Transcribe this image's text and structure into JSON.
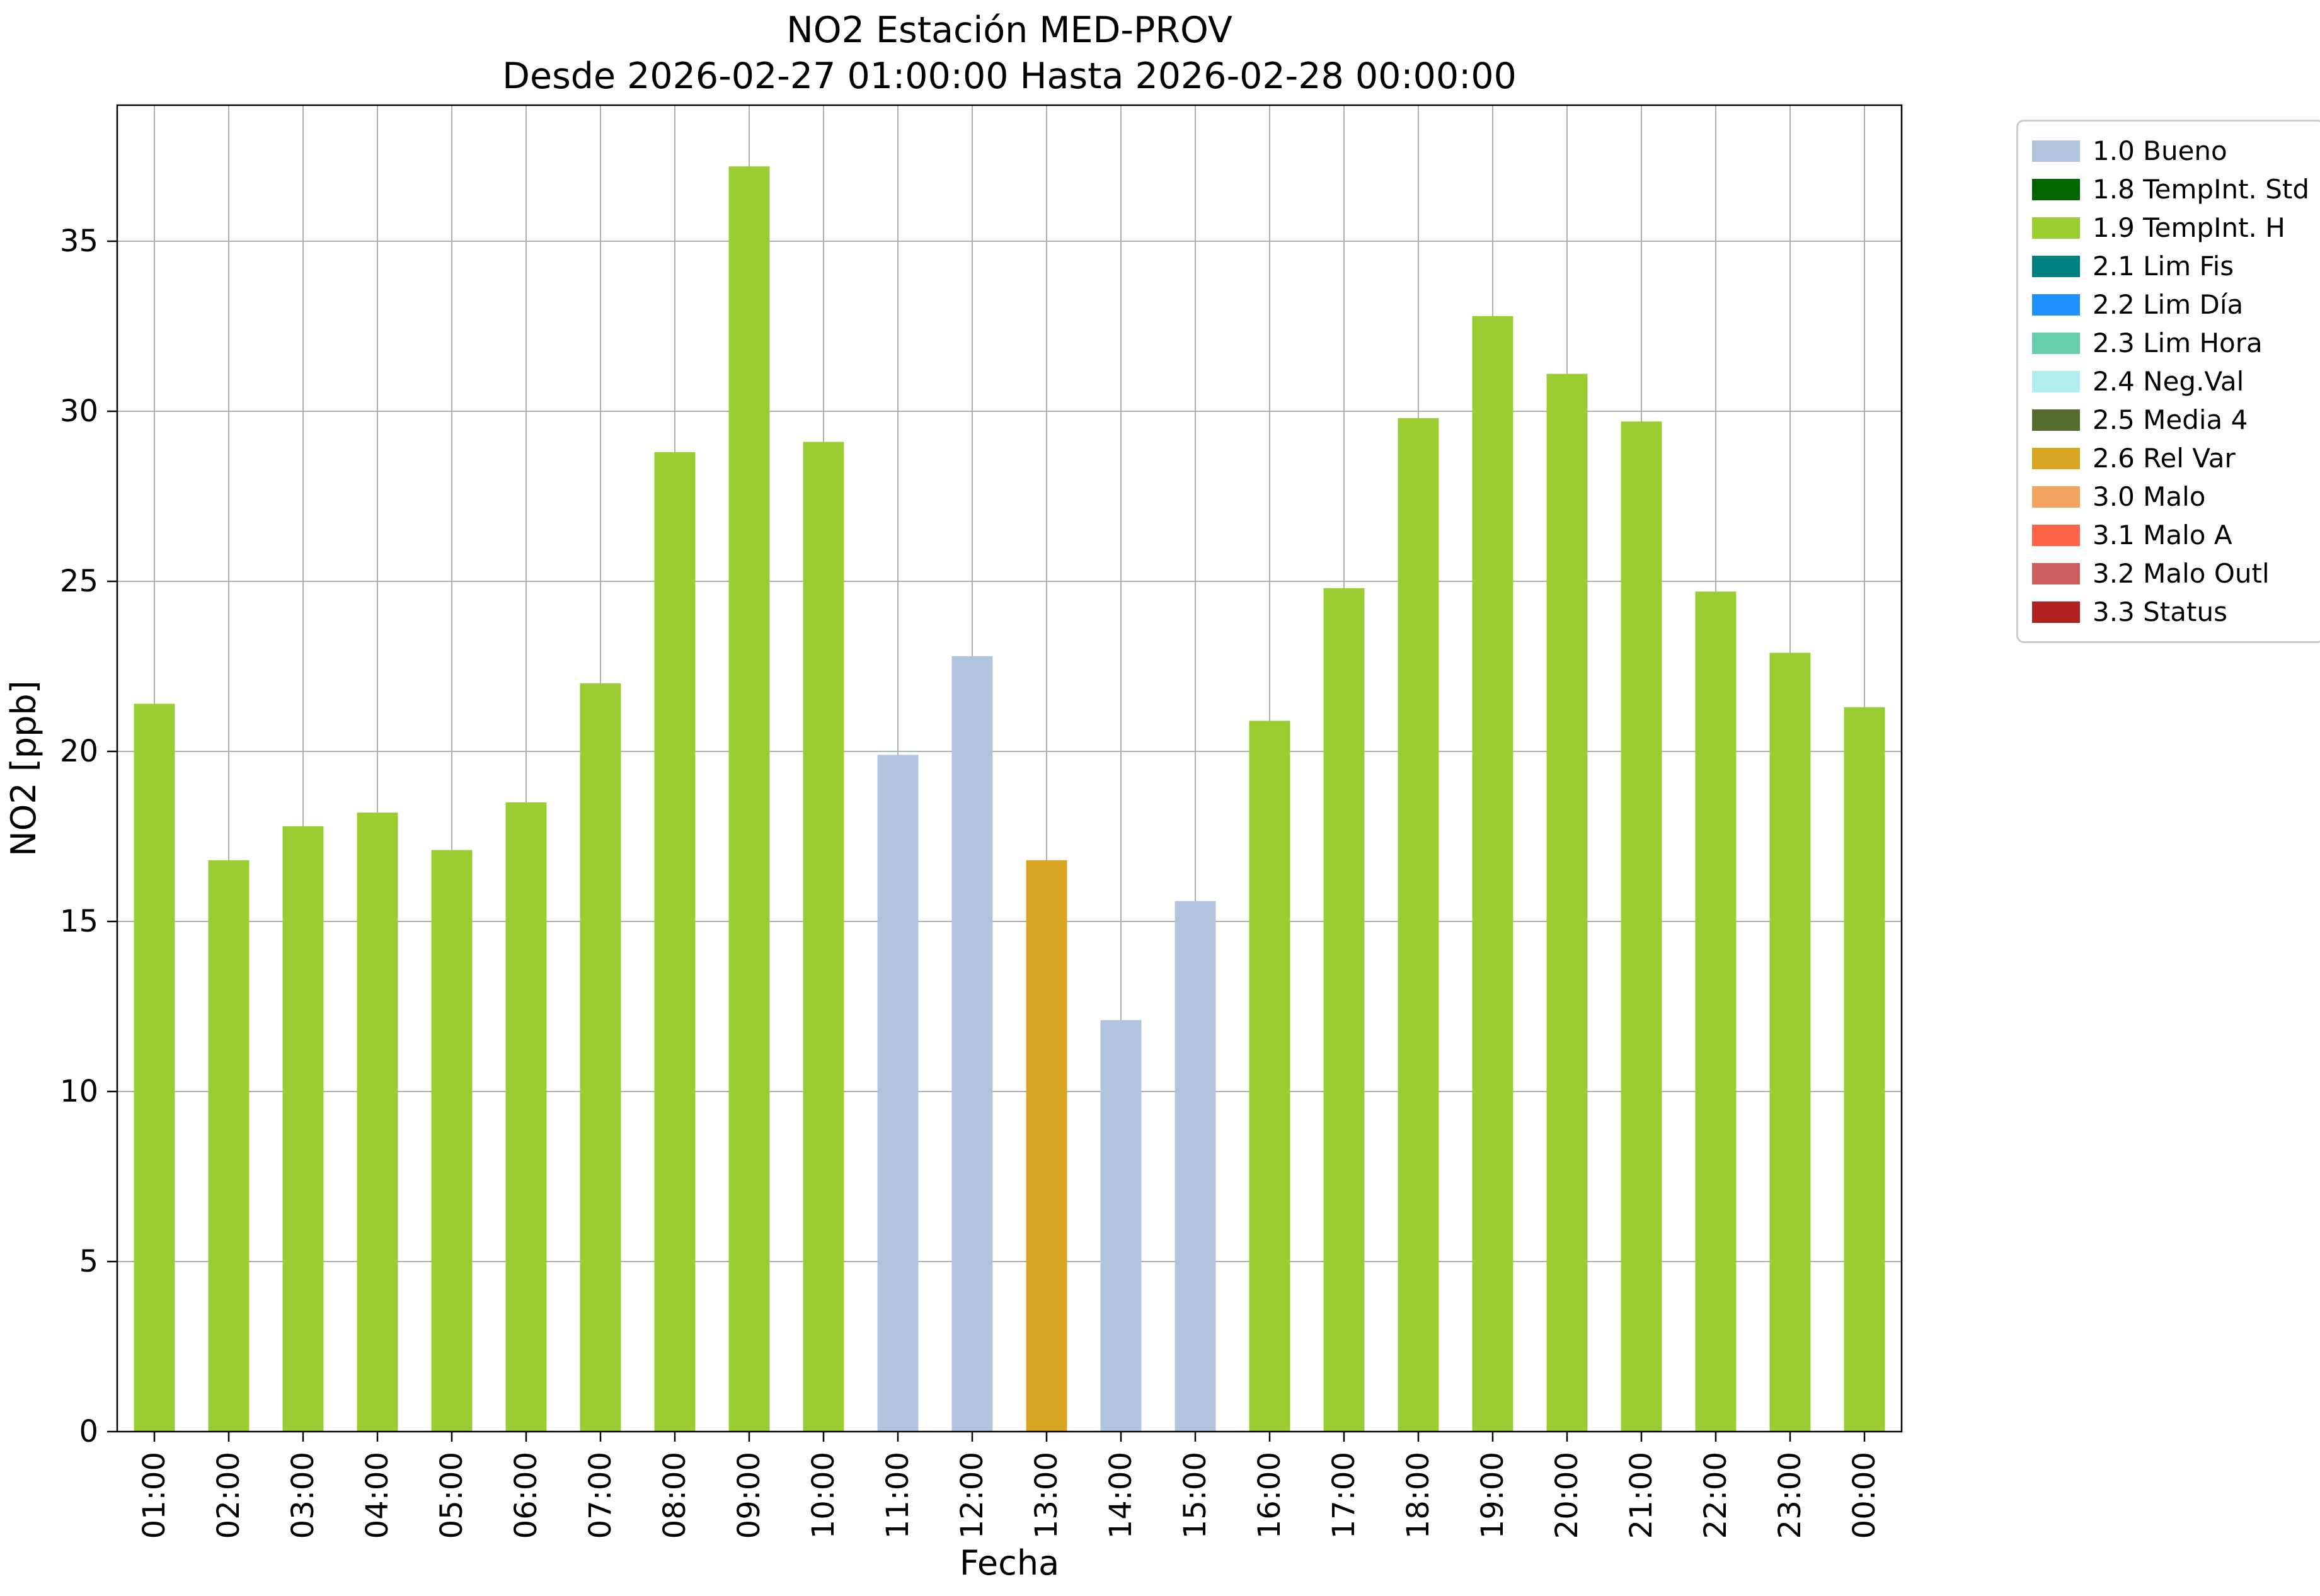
{
  "chart_data": {
    "type": "bar",
    "title": "NO2 Estación MED-PROV",
    "subtitle": "Desde 2026-02-27 01:00:00 Hasta 2026-02-28 00:00:00",
    "xlabel": "Fecha",
    "ylabel": "NO2 [ppb]",
    "ylim": [
      0,
      39.0
    ],
    "yticks": [
      0,
      5,
      10,
      15,
      20,
      25,
      30,
      35
    ],
    "grid": true,
    "legend_position": "outside-upper-right",
    "categories": [
      "01:00",
      "02:00",
      "03:00",
      "04:00",
      "05:00",
      "06:00",
      "07:00",
      "08:00",
      "09:00",
      "10:00",
      "11:00",
      "12:00",
      "13:00",
      "14:00",
      "15:00",
      "16:00",
      "17:00",
      "18:00",
      "19:00",
      "20:00",
      "21:00",
      "22:00",
      "23:00",
      "00:00"
    ],
    "values": [
      21.4,
      16.8,
      17.8,
      18.2,
      17.1,
      18.5,
      22.0,
      28.8,
      37.2,
      29.1,
      19.9,
      22.8,
      16.8,
      12.1,
      15.6,
      20.9,
      24.8,
      29.8,
      32.8,
      31.1,
      29.7,
      24.7,
      22.9,
      21.3
    ],
    "bar_flags": [
      "1.9",
      "1.9",
      "1.9",
      "1.9",
      "1.9",
      "1.9",
      "1.9",
      "1.9",
      "1.9",
      "1.9",
      "1.0",
      "1.0",
      "2.6",
      "1.0",
      "1.0",
      "1.9",
      "1.9",
      "1.9",
      "1.9",
      "1.9",
      "1.9",
      "1.9",
      "1.9",
      "1.9"
    ],
    "flag_colors": {
      "1.0": "#B0C4DE",
      "1.8": "#006400",
      "1.9": "#9ACD32",
      "2.1": "#008080",
      "2.2": "#1E90FF",
      "2.3": "#66CDAA",
      "2.4": "#AFEEEE",
      "2.5": "#556B2F",
      "2.6": "#DAA520",
      "3.0": "#F4A460",
      "3.1": "#FF6347",
      "3.2": "#CD5C5C",
      "3.3": "#B22222"
    },
    "legend": [
      {
        "code": "1.0",
        "label": "1.0 Bueno"
      },
      {
        "code": "1.8",
        "label": "1.8 TempInt. Std"
      },
      {
        "code": "1.9",
        "label": "1.9 TempInt. H"
      },
      {
        "code": "2.1",
        "label": "2.1 Lim Fis"
      },
      {
        "code": "2.2",
        "label": "2.2 Lim Día"
      },
      {
        "code": "2.3",
        "label": "2.3 Lim Hora"
      },
      {
        "code": "2.4",
        "label": "2.4 Neg.Val"
      },
      {
        "code": "2.5",
        "label": "2.5 Media 4"
      },
      {
        "code": "2.6",
        "label": "2.6 Rel Var"
      },
      {
        "code": "3.0",
        "label": "3.0 Malo"
      },
      {
        "code": "3.1",
        "label": "3.1 Malo A"
      },
      {
        "code": "3.2",
        "label": "3.2 Malo Outl"
      },
      {
        "code": "3.3",
        "label": "3.3 Status"
      }
    ],
    "colors": {
      "grid": "#b0b0b0",
      "axis": "#000000",
      "text": "#000000",
      "background": "#ffffff",
      "legend_border": "#cccccc"
    }
  }
}
